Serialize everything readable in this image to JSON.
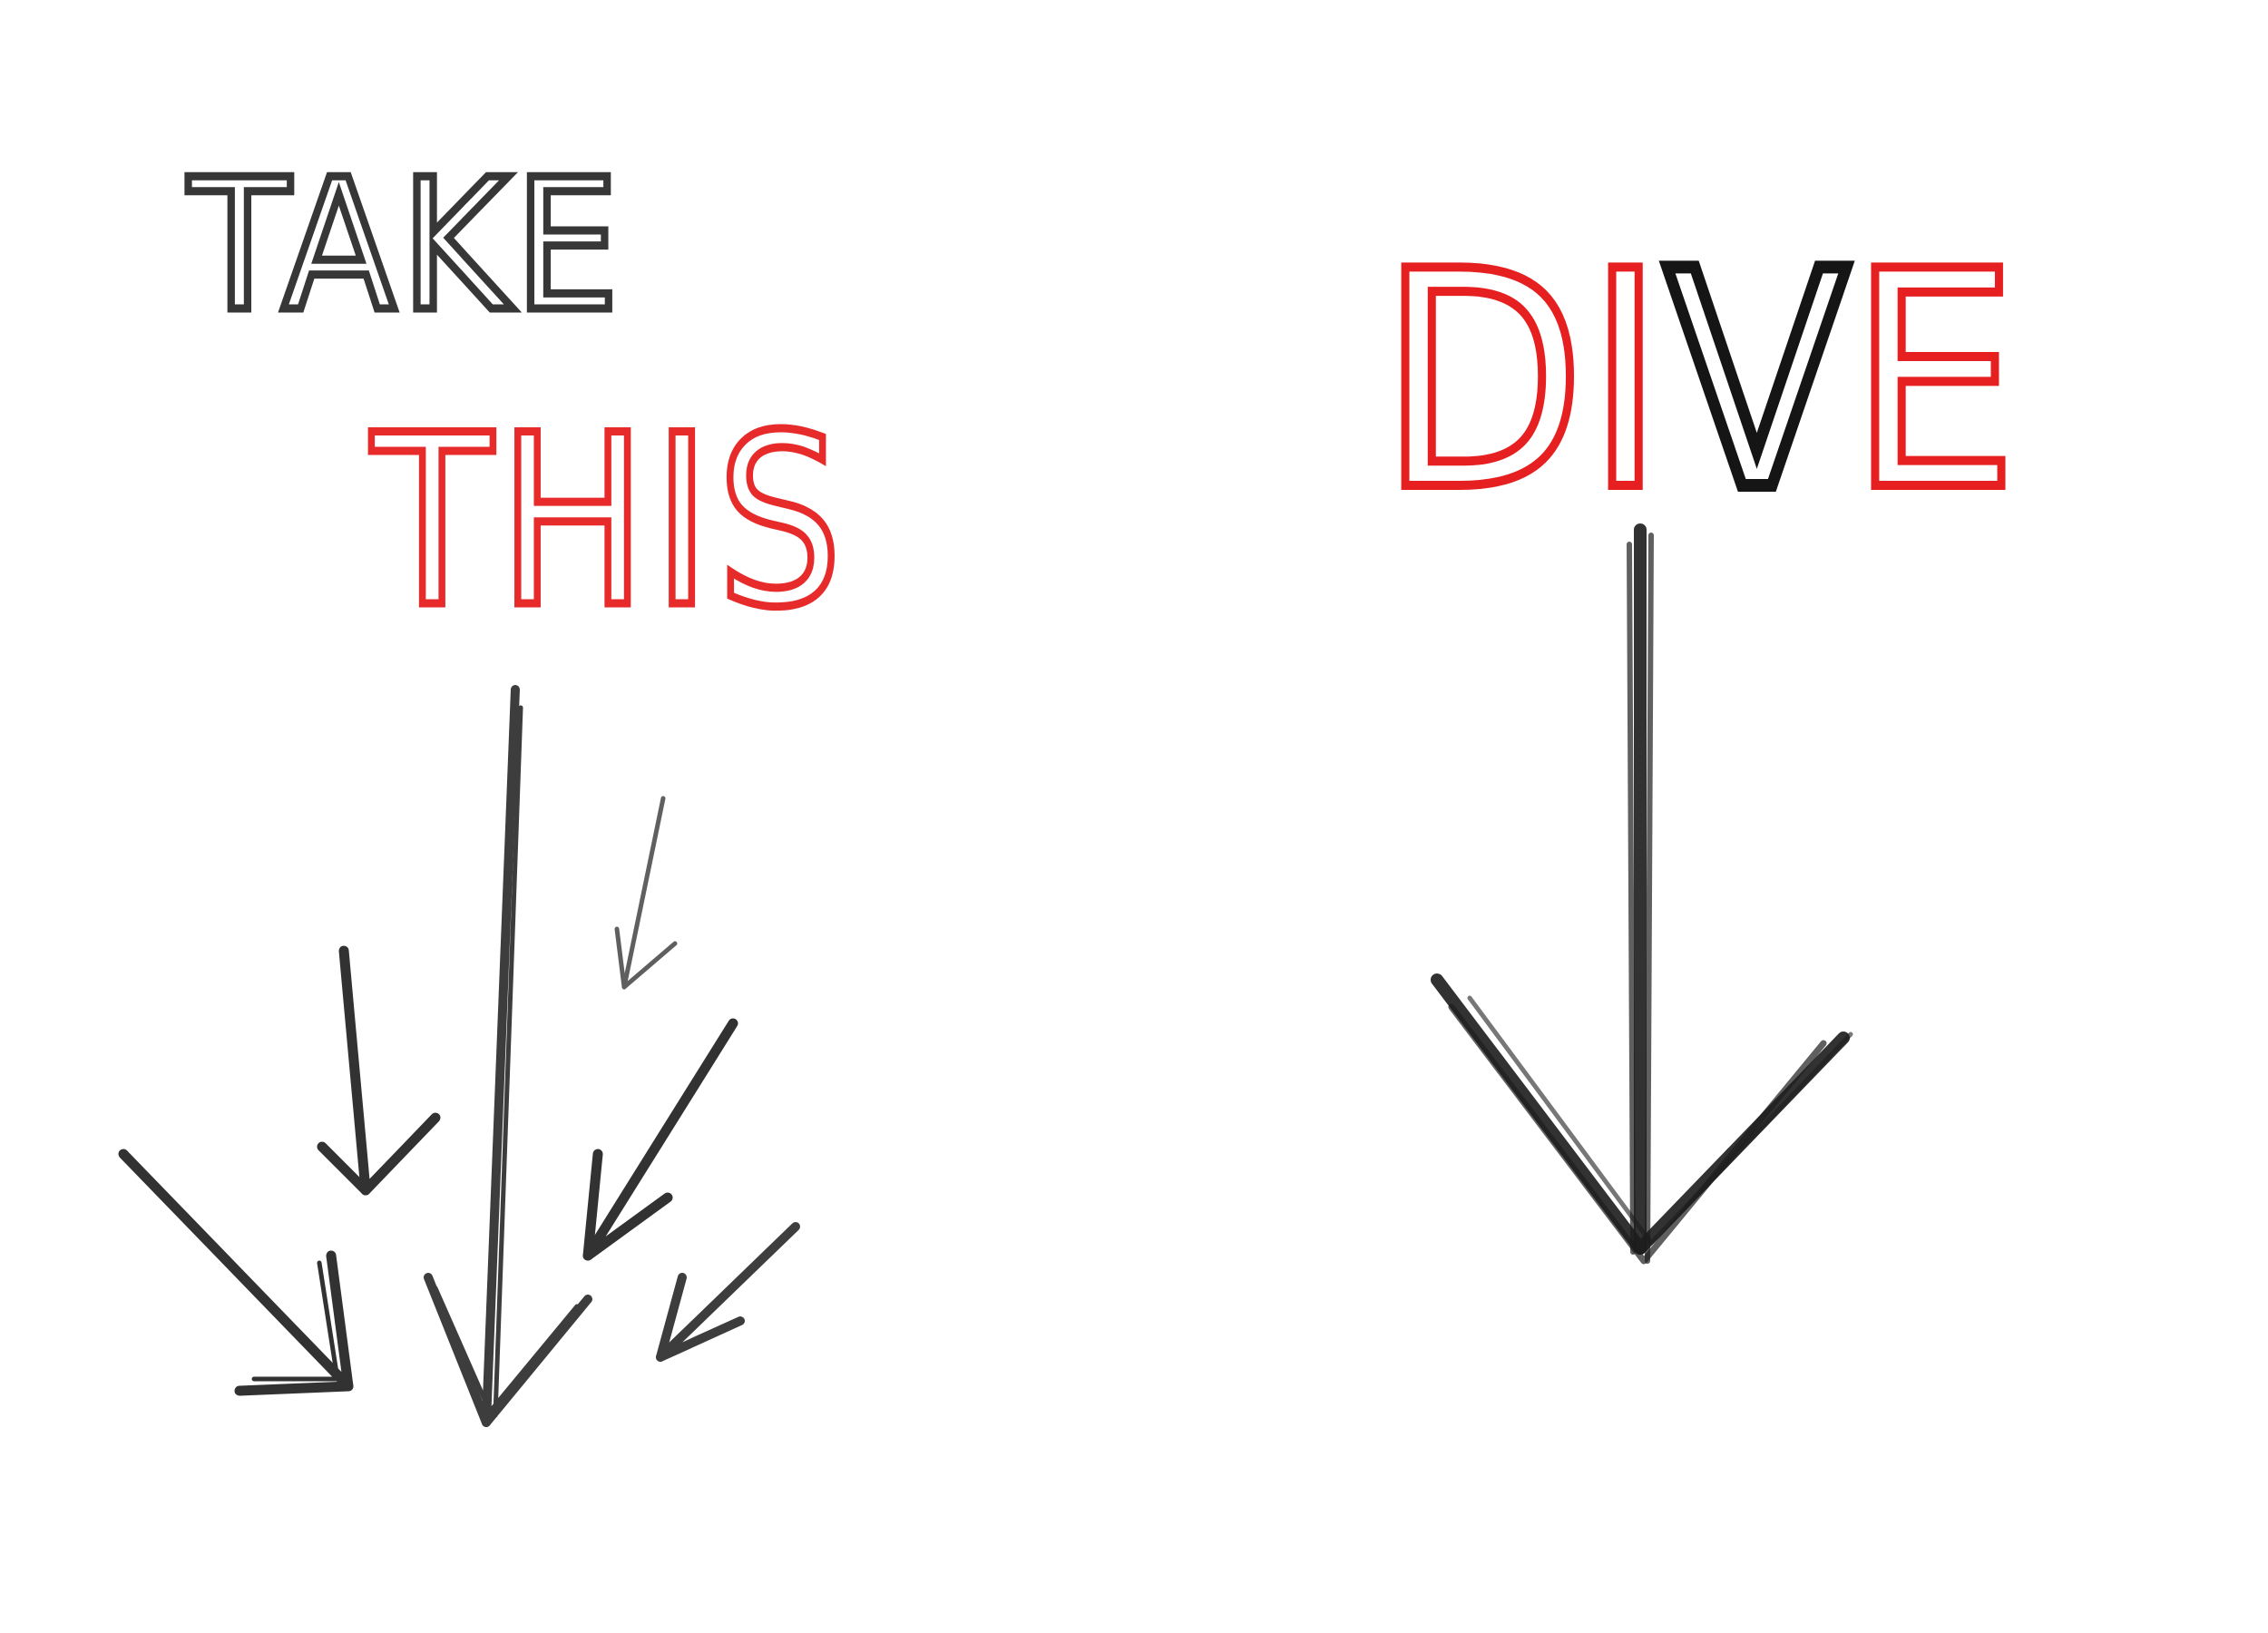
{
  "left": {
    "line1": "TAKE",
    "line2": "THIS"
  },
  "right": {
    "word_parts": [
      "DI",
      "V",
      "E"
    ]
  }
}
